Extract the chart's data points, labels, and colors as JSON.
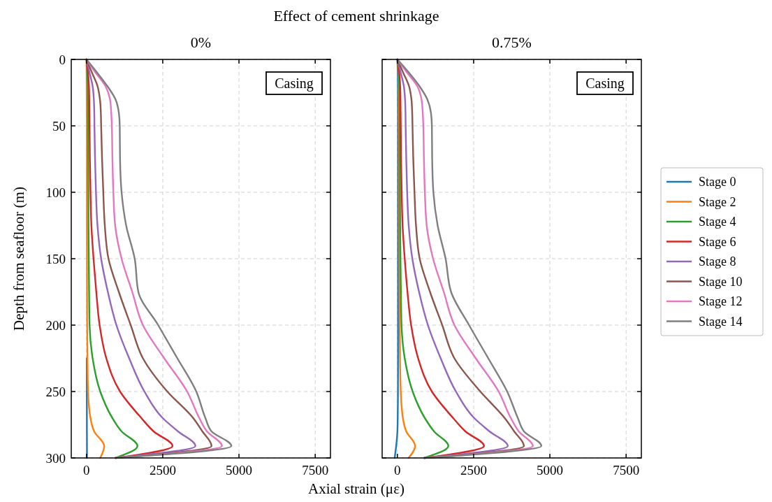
{
  "chart_data": [
    {
      "type": "line",
      "title": "Effect of cement shrinkage",
      "subtitle": "0%",
      "xlabel": "Axial strain (με)",
      "ylabel": "Depth from seafloor (m)",
      "annotations": [
        "Casing"
      ],
      "xlim": [
        -500,
        8000
      ],
      "xticks": [
        0,
        2500,
        5000,
        7500
      ],
      "ylim": [
        300,
        0
      ],
      "yticks": [
        0,
        50,
        100,
        150,
        200,
        250,
        300
      ],
      "grid": true,
      "series": [
        {
          "color": "#1f77b4",
          "x": [
            8,
            10,
            12,
            13,
            15,
            15
          ],
          "values": [
            225,
            250,
            270,
            280,
            291,
            300
          ]
        },
        {
          "color": "#ff7f0e",
          "x": [
            0,
            3,
            5,
            7,
            8,
            10,
            11,
            12,
            13,
            15,
            17,
            20,
            30,
            50,
            130,
            250,
            580,
            450
          ],
          "values": [
            0,
            10,
            20,
            30,
            40,
            50,
            75,
            100,
            125,
            150,
            175,
            200,
            225,
            250,
            270,
            280,
            291,
            300
          ]
        },
        {
          "color": "#2ca02c",
          "x": [
            0,
            25,
            40,
            45,
            50,
            50,
            55,
            60,
            65,
            75,
            85,
            100,
            200,
            450,
            850,
            1150,
            1670,
            950
          ],
          "values": [
            0,
            10,
            20,
            30,
            40,
            50,
            75,
            100,
            125,
            150,
            175,
            200,
            225,
            250,
            270,
            280,
            291,
            300
          ]
        },
        {
          "color": "#d62728",
          "x": [
            0,
            50,
            80,
            90,
            95,
            100,
            110,
            130,
            160,
            230,
            320,
            430,
            650,
            1100,
            1800,
            2200,
            2820,
            950
          ],
          "values": [
            0,
            10,
            20,
            30,
            40,
            50,
            75,
            100,
            125,
            150,
            175,
            200,
            225,
            250,
            270,
            280,
            291,
            300
          ]
        },
        {
          "color": "#9467bd",
          "x": [
            0,
            100,
            200,
            240,
            255,
            260,
            280,
            310,
            360,
            480,
            700,
            980,
            1400,
            1900,
            2500,
            3000,
            3570,
            950
          ],
          "values": [
            0,
            10,
            20,
            30,
            40,
            50,
            75,
            100,
            125,
            150,
            175,
            200,
            225,
            250,
            270,
            280,
            291,
            300
          ]
        },
        {
          "color": "#8c564b",
          "x": [
            0,
            180,
            360,
            440,
            470,
            480,
            510,
            550,
            600,
            720,
            1060,
            1450,
            1850,
            2650,
            3500,
            3800,
            4100,
            950
          ],
          "values": [
            0,
            10,
            20,
            30,
            40,
            50,
            75,
            100,
            125,
            150,
            175,
            200,
            225,
            250,
            270,
            280,
            291,
            300
          ]
        },
        {
          "color": "#e377c2",
          "x": [
            0,
            300,
            620,
            770,
            810,
            830,
            850,
            880,
            940,
            1150,
            1500,
            1850,
            2550,
            3300,
            3700,
            3950,
            4440,
            950
          ],
          "values": [
            0,
            10,
            20,
            30,
            40,
            50,
            75,
            100,
            125,
            150,
            175,
            200,
            225,
            250,
            270,
            280,
            291,
            300
          ]
        },
        {
          "color": "#7f7f7f",
          "x": [
            0,
            350,
            680,
            950,
            1060,
            1090,
            1100,
            1150,
            1300,
            1580,
            1700,
            2350,
            2980,
            3600,
            3900,
            4100,
            4750,
            950
          ],
          "values": [
            0,
            10,
            20,
            30,
            40,
            50,
            75,
            100,
            125,
            150,
            175,
            200,
            225,
            250,
            270,
            280,
            291,
            300
          ]
        }
      ]
    },
    {
      "type": "line",
      "subtitle": "0.75%",
      "annotations": [
        "Casing"
      ],
      "xlim": [
        -500,
        8000
      ],
      "xticks": [
        0,
        2500,
        5000,
        7500
      ],
      "ylim": [
        300,
        0
      ],
      "yticks": [
        0,
        50,
        100,
        150,
        200,
        250,
        300
      ],
      "grid": true,
      "tick_labels": "x",
      "legend": "right",
      "series": [
        {
          "name": "Stage 0",
          "color": "#1f77b4",
          "x": [
            0,
            10,
            15,
            18,
            20,
            20,
            20,
            20,
            20,
            20,
            20,
            20,
            20,
            18,
            10,
            0,
            -40,
            -90
          ],
          "values": [
            0,
            10,
            20,
            30,
            40,
            50,
            75,
            100,
            125,
            150,
            175,
            200,
            225,
            250,
            270,
            280,
            291,
            300
          ]
        },
        {
          "name": "Stage 2",
          "color": "#ff7f0e",
          "x": [
            0,
            25,
            40,
            50,
            55,
            58,
            60,
            60,
            62,
            65,
            70,
            75,
            85,
            110,
            180,
            290,
            580,
            365
          ],
          "values": [
            0,
            10,
            20,
            30,
            40,
            50,
            75,
            100,
            125,
            150,
            175,
            200,
            225,
            250,
            270,
            280,
            291,
            300
          ]
        },
        {
          "name": "Stage 4",
          "color": "#2ca02c",
          "x": [
            0,
            40,
            60,
            70,
            75,
            78,
            80,
            85,
            90,
            100,
            115,
            135,
            240,
            500,
            900,
            1200,
            1670,
            880
          ],
          "values": [
            0,
            10,
            20,
            30,
            40,
            50,
            75,
            100,
            125,
            150,
            175,
            200,
            225,
            250,
            270,
            280,
            291,
            300
          ]
        },
        {
          "name": "Stage 6",
          "color": "#d62728",
          "x": [
            0,
            60,
            90,
            100,
            105,
            110,
            120,
            140,
            170,
            240,
            330,
            450,
            680,
            1130,
            1830,
            2230,
            2840,
            880
          ],
          "values": [
            0,
            10,
            20,
            30,
            40,
            50,
            75,
            100,
            125,
            150,
            175,
            200,
            225,
            250,
            270,
            280,
            291,
            300
          ]
        },
        {
          "name": "Stage 8",
          "color": "#9467bd",
          "x": [
            0,
            110,
            210,
            250,
            265,
            270,
            290,
            320,
            370,
            490,
            710,
            1000,
            1420,
            1920,
            2520,
            3020,
            3620,
            880
          ],
          "values": [
            0,
            10,
            20,
            30,
            40,
            50,
            75,
            100,
            125,
            150,
            175,
            200,
            225,
            250,
            270,
            280,
            291,
            300
          ]
        },
        {
          "name": "Stage 10",
          "color": "#8c564b",
          "x": [
            0,
            190,
            380,
            460,
            485,
            495,
            520,
            560,
            610,
            730,
            1070,
            1470,
            1870,
            2720,
            3520,
            3830,
            4150,
            880
          ],
          "values": [
            0,
            10,
            20,
            30,
            40,
            50,
            75,
            100,
            125,
            150,
            175,
            200,
            225,
            250,
            270,
            280,
            291,
            300
          ]
        },
        {
          "name": "Stage 12",
          "color": "#e377c2",
          "x": [
            0,
            320,
            650,
            790,
            830,
            850,
            870,
            900,
            960,
            1170,
            1520,
            1870,
            2570,
            3320,
            3720,
            3980,
            4440,
            880
          ],
          "values": [
            0,
            10,
            20,
            30,
            40,
            50,
            75,
            100,
            125,
            150,
            175,
            200,
            225,
            250,
            270,
            280,
            291,
            300
          ]
        },
        {
          "name": "Stage 14",
          "color": "#7f7f7f",
          "x": [
            0,
            380,
            720,
            980,
            1100,
            1130,
            1140,
            1180,
            1320,
            1580,
            1760,
            2350,
            2980,
            3600,
            3950,
            4150,
            4720,
            880
          ],
          "values": [
            0,
            10,
            20,
            30,
            40,
            50,
            75,
            100,
            125,
            150,
            175,
            200,
            225,
            250,
            270,
            280,
            291,
            300
          ]
        }
      ]
    }
  ]
}
